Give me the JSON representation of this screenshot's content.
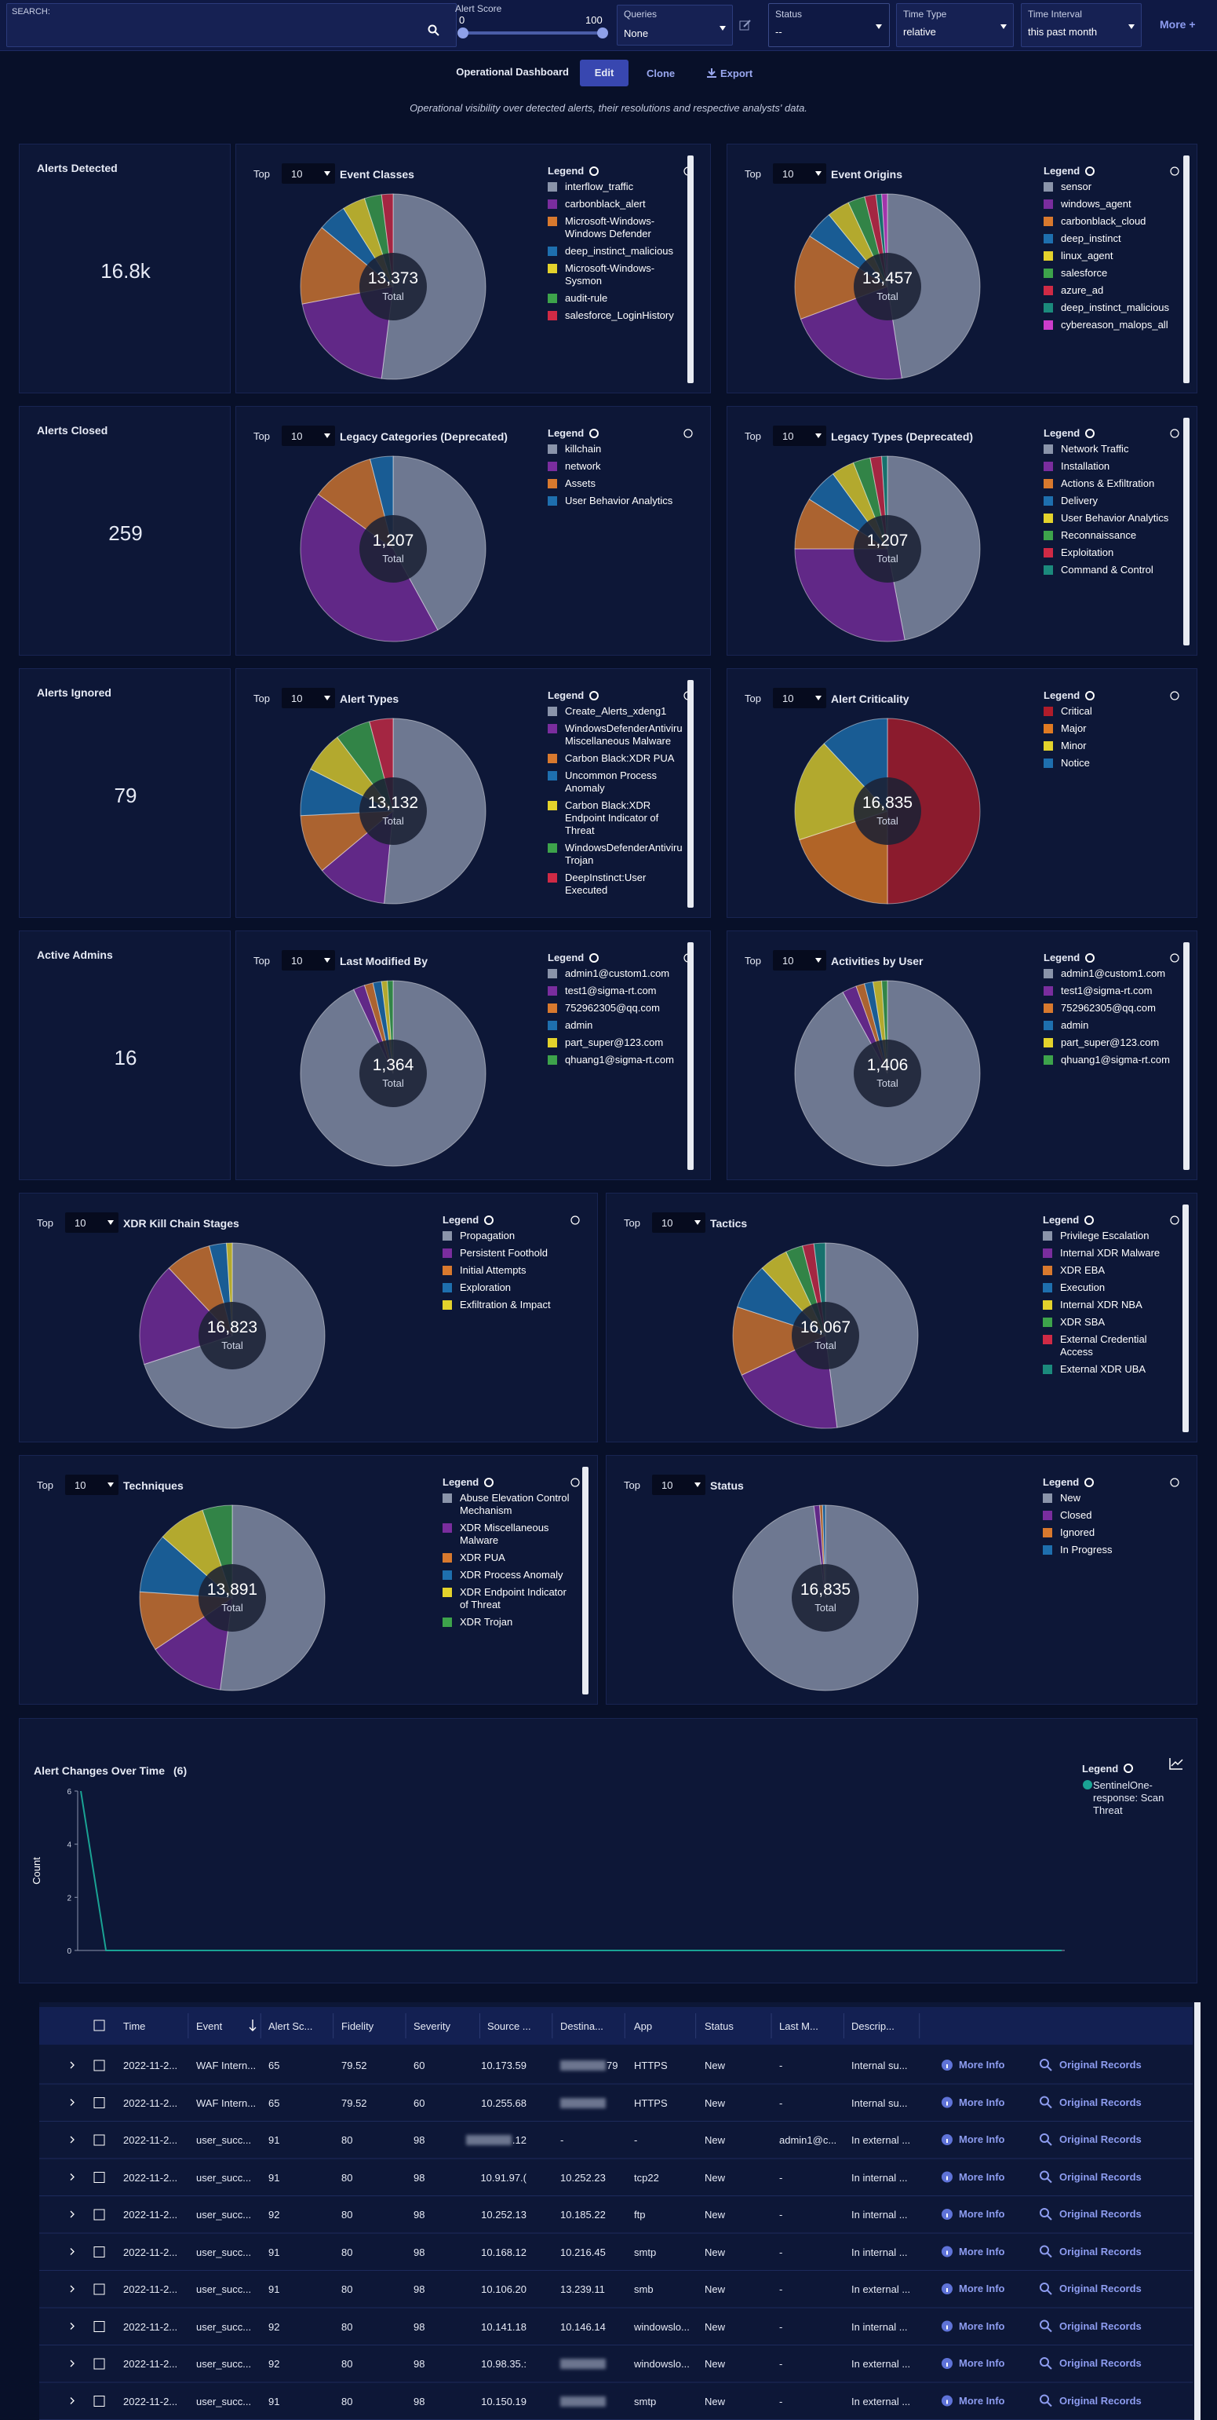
{
  "top_bar": {
    "search_label": "SEARCH:",
    "alert_score": {
      "label": "Alert Score",
      "min": 0,
      "max": 100
    },
    "queries": {
      "label": "Queries",
      "value": "None"
    },
    "status": {
      "label": "Status",
      "value": "--"
    },
    "time_type": {
      "label": "Time Type",
      "value": "relative"
    },
    "time_interval": {
      "label": "Time Interval",
      "value": "this past month"
    },
    "more": "More +"
  },
  "toolbar": {
    "dashboard": "Operational Dashboard",
    "edit": "Edit",
    "clone": "Clone",
    "export": "Export"
  },
  "subtitle": "Operational visibility over detected alerts, their resolutions and respective analysts' data.",
  "labels": {
    "top": "Top",
    "top_n": "10",
    "legend": "Legend",
    "total": "Total"
  },
  "stats": [
    {
      "label": "Alerts Detected",
      "value": "16.8k"
    },
    {
      "label": "Alerts Closed",
      "value": "259"
    },
    {
      "label": "Alerts Ignored",
      "value": "79"
    },
    {
      "label": "Active Admins",
      "value": "16"
    }
  ],
  "pie_panels": [
    {
      "title": "Event Classes",
      "total": "13,373",
      "slices": [
        {
          "name": "interflow_traffic",
          "color": "#8a94aa",
          "value": 52
        },
        {
          "name": "carbonblack_alert",
          "color": "#7a2d9e",
          "value": 20
        },
        {
          "name": "Microsoft-Windows-Windows Defender",
          "color": "#d8792e",
          "value": 14
        },
        {
          "name": "deep_instinct_malicious",
          "color": "#1e6fae",
          "value": 5
        },
        {
          "name": "Microsoft-Windows-Sysmon",
          "color": "#e3d22c",
          "value": 4
        },
        {
          "name": "audit-rule",
          "color": "#3da34b",
          "value": 3
        },
        {
          "name": "salesforce_LoginHistory",
          "color": "#cf2a45",
          "value": 2
        }
      ]
    },
    {
      "title": "Event Origins",
      "total": "13,457",
      "slices": [
        {
          "name": "sensor",
          "color": "#8a94aa",
          "value": 48
        },
        {
          "name": "windows_agent",
          "color": "#7a2d9e",
          "value": 22
        },
        {
          "name": "carbonblack_cloud",
          "color": "#d8792e",
          "value": 15
        },
        {
          "name": "deep_instinct",
          "color": "#1e6fae",
          "value": 5
        },
        {
          "name": "linux_agent",
          "color": "#e3d22c",
          "value": 4
        },
        {
          "name": "salesforce",
          "color": "#3da34b",
          "value": 3
        },
        {
          "name": "azure_ad",
          "color": "#cf2a45",
          "value": 2
        },
        {
          "name": "deep_instinct_malicious",
          "color": "#1b8a7c",
          "value": 1
        },
        {
          "name": "cybereason_malops_all",
          "color": "#cc3dcc",
          "value": 1
        }
      ]
    },
    {
      "title": "Legacy Categories (Deprecated)",
      "total": "1,207",
      "slices": [
        {
          "name": "killchain",
          "color": "#8a94aa",
          "value": 42
        },
        {
          "name": "network",
          "color": "#7a2d9e",
          "value": 43
        },
        {
          "name": "Assets",
          "color": "#d8792e",
          "value": 11
        },
        {
          "name": "User Behavior Analytics",
          "color": "#1e6fae",
          "value": 4
        }
      ]
    },
    {
      "title": "Legacy Types (Deprecated)",
      "total": "1,207",
      "slices": [
        {
          "name": "Network Traffic",
          "color": "#8a94aa",
          "value": 47
        },
        {
          "name": "Installation",
          "color": "#7a2d9e",
          "value": 28
        },
        {
          "name": "Actions & Exfiltration",
          "color": "#d8792e",
          "value": 9
        },
        {
          "name": "Delivery",
          "color": "#1e6fae",
          "value": 6
        },
        {
          "name": "User Behavior Analytics",
          "color": "#e3d22c",
          "value": 4
        },
        {
          "name": "Reconnaissance",
          "color": "#3da34b",
          "value": 3
        },
        {
          "name": "Exploitation",
          "color": "#cf2a45",
          "value": 2
        },
        {
          "name": "Command & Control",
          "color": "#1b8a7c",
          "value": 1
        }
      ]
    },
    {
      "title": "Alert Types",
      "total": "13,132",
      "slices": [
        {
          "name": "Create_Alerts_xdeng1",
          "color": "#8a94aa",
          "value": 50
        },
        {
          "name": "WindowsDefenderAntivirus Miscellaneous Malware",
          "color": "#7a2d9e",
          "value": 12
        },
        {
          "name": "Carbon Black:XDR PUA",
          "color": "#d8792e",
          "value": 10
        },
        {
          "name": "Uncommon Process Anomaly",
          "color": "#1e6fae",
          "value": 8
        },
        {
          "name": "Carbon Black:XDR Endpoint Indicator of Threat",
          "color": "#e3d22c",
          "value": 7
        },
        {
          "name": "WindowsDefenderAntivirus Trojan",
          "color": "#3da34b",
          "value": 6
        },
        {
          "name": "DeepInstinct:User Executed",
          "color": "#cf2a45",
          "value": 4
        }
      ]
    },
    {
      "title": "Alert Criticality",
      "total": "16,835",
      "slices": [
        {
          "name": "Critical",
          "color": "#b01c2a",
          "value": 50
        },
        {
          "name": "Major",
          "color": "#e07a22",
          "value": 20
        },
        {
          "name": "Minor",
          "color": "#e2d22c",
          "value": 18
        },
        {
          "name": "Notice",
          "color": "#1e6fae",
          "value": 12
        }
      ]
    },
    {
      "title": "Last Modified By",
      "total": "1,364",
      "slices": [
        {
          "name": "admin1@custom1.com",
          "color": "#8a94aa",
          "value": 93
        },
        {
          "name": "test1@sigma-rt.com",
          "color": "#7a2d9e",
          "value": 2
        },
        {
          "name": "752962305@qq.com",
          "color": "#d8792e",
          "value": 1.5
        },
        {
          "name": "admin",
          "color": "#1e6fae",
          "value": 1.5
        },
        {
          "name": "part_super@123.com",
          "color": "#e3d22c",
          "value": 1
        },
        {
          "name": "qhuang1@sigma-rt.com",
          "color": "#3da34b",
          "value": 1
        }
      ]
    },
    {
      "title": "Activities by User",
      "total": "1,406",
      "slices": [
        {
          "name": "admin1@custom1.com",
          "color": "#8a94aa",
          "value": 92
        },
        {
          "name": "test1@sigma-rt.com",
          "color": "#7a2d9e",
          "value": 2.5
        },
        {
          "name": "752962305@qq.com",
          "color": "#d8792e",
          "value": 1.5
        },
        {
          "name": "admin",
          "color": "#1e6fae",
          "value": 1.5
        },
        {
          "name": "part_super@123.com",
          "color": "#e3d22c",
          "value": 1.5
        },
        {
          "name": "qhuang1@sigma-rt.com",
          "color": "#3da34b",
          "value": 1
        }
      ]
    },
    {
      "title": "XDR Kill Chain Stages",
      "total": "16,823",
      "slices": [
        {
          "name": "Propagation",
          "color": "#8a94aa",
          "value": 70
        },
        {
          "name": "Persistent Foothold",
          "color": "#7a2d9e",
          "value": 18
        },
        {
          "name": "Initial Attempts",
          "color": "#d8792e",
          "value": 8
        },
        {
          "name": "Exploration",
          "color": "#1e6fae",
          "value": 3
        },
        {
          "name": "Exfiltration & Impact",
          "color": "#e3d22c",
          "value": 1
        }
      ]
    },
    {
      "title": "Tactics",
      "total": "16,067",
      "slices": [
        {
          "name": "Privilege Escalation",
          "color": "#8a94aa",
          "value": 48
        },
        {
          "name": "Internal XDR Malware",
          "color": "#7a2d9e",
          "value": 20
        },
        {
          "name": "XDR EBA",
          "color": "#d8792e",
          "value": 12
        },
        {
          "name": "Execution",
          "color": "#1e6fae",
          "value": 8
        },
        {
          "name": "Internal XDR NBA",
          "color": "#e3d22c",
          "value": 5
        },
        {
          "name": "XDR SBA",
          "color": "#3da34b",
          "value": 3
        },
        {
          "name": "External Credential Access",
          "color": "#cf2a45",
          "value": 2
        },
        {
          "name": "External XDR UBA",
          "color": "#1b8a7c",
          "value": 2
        }
      ]
    },
    {
      "title": "Techniques",
      "total": "13,891",
      "slices": [
        {
          "name": "Abuse Elevation Control Mechanism",
          "color": "#8a94aa",
          "value": 50
        },
        {
          "name": "XDR Miscellaneous Malware",
          "color": "#7a2d9e",
          "value": 13
        },
        {
          "name": "XDR PUA",
          "color": "#d8792e",
          "value": 10
        },
        {
          "name": "XDR Process Anomaly",
          "color": "#1e6fae",
          "value": 10
        },
        {
          "name": "XDR Endpoint Indicator of Threat",
          "color": "#e3d22c",
          "value": 8
        },
        {
          "name": "XDR Trojan",
          "color": "#3da34b",
          "value": 5
        }
      ]
    },
    {
      "title": "Status",
      "total": "16,835",
      "slices": [
        {
          "name": "New",
          "color": "#8a94aa",
          "value": 98
        },
        {
          "name": "Closed",
          "color": "#7a2d9e",
          "value": 1
        },
        {
          "name": "Ignored",
          "color": "#d8792e",
          "value": 0.5
        },
        {
          "name": "In Progress",
          "color": "#1e6fae",
          "value": 0.5
        }
      ]
    }
  ],
  "line_chart": {
    "title": "Alert Changes Over Time",
    "count": "(6)",
    "y_label": "Count",
    "ylim": [
      0,
      6
    ],
    "yticks": [
      0,
      2,
      4,
      6
    ],
    "x": [
      null,
      null,
      null,
      null,
      null,
      null,
      null,
      null,
      null,
      null,
      null,
      null,
      null,
      null,
      null,
      null,
      null,
      null,
      null,
      null,
      null,
      null,
      null,
      null,
      null,
      null,
      null,
      null,
      null,
      null,
      null,
      null,
      null,
      null,
      null,
      null,
      null,
      null,
      null,
      null
    ],
    "series": [
      {
        "name": "SentinelOne-response: Scan Threat",
        "color": "#1aa394",
        "values": [
          6,
          0,
          0,
          0,
          0,
          0,
          0,
          0,
          0,
          0,
          0,
          0,
          0,
          0,
          0,
          0,
          0,
          0,
          0,
          0,
          0,
          0,
          0,
          0,
          0,
          0,
          0,
          0,
          0,
          0,
          0,
          0,
          0,
          0,
          0,
          0,
          0,
          0,
          0,
          0
        ]
      }
    ]
  },
  "table": {
    "headers": [
      "Time",
      "Event",
      "Alert Sc...",
      "Fidelity",
      "Severity",
      "Source ...",
      "Destina...",
      "App",
      "Status",
      "Last M...",
      "Descrip..."
    ],
    "actions": [
      "More Info",
      "Original Records"
    ],
    "rows": [
      [
        "2022-11-2...",
        "WAF Intern...",
        "65",
        "79.52",
        "60",
        "10.173.59",
        "79",
        "HTTPS",
        "New",
        "-",
        "Internal su..."
      ],
      [
        "2022-11-2...",
        "WAF Intern...",
        "65",
        "79.52",
        "60",
        "10.255.68",
        null,
        "HTTPS",
        "New",
        "-",
        "Internal su..."
      ],
      [
        "2022-11-2...",
        "user_succ...",
        "91",
        "80",
        "98",
        ".12",
        "-",
        "-",
        "New",
        "admin1@c...",
        "In external ..."
      ],
      [
        "2022-11-2...",
        "user_succ...",
        "91",
        "80",
        "98",
        "10.91.97.(",
        "10.252.23",
        "tcp22",
        "New",
        "-",
        "In internal ..."
      ],
      [
        "2022-11-2...",
        "user_succ...",
        "92",
        "80",
        "98",
        "10.252.13",
        "10.185.22",
        "ftp",
        "New",
        "-",
        "In internal ..."
      ],
      [
        "2022-11-2...",
        "user_succ...",
        "91",
        "80",
        "98",
        "10.168.12",
        "10.216.45",
        "smtp",
        "New",
        "-",
        "In internal ..."
      ],
      [
        "2022-11-2...",
        "user_succ...",
        "91",
        "80",
        "98",
        "10.106.20",
        "13.239.11",
        "smb",
        "New",
        "-",
        "In external ..."
      ],
      [
        "2022-11-2...",
        "user_succ...",
        "92",
        "80",
        "98",
        "10.141.18",
        "10.146.14",
        "windowslo...",
        "New",
        "-",
        "In internal ..."
      ],
      [
        "2022-11-2...",
        "user_succ...",
        "92",
        "80",
        "98",
        "10.98.35.:",
        null,
        "windowslo...",
        "New",
        "-",
        "In external ..."
      ],
      [
        "2022-11-2...",
        "user_succ...",
        "91",
        "80",
        "98",
        "10.150.19",
        null,
        "smtp",
        "New",
        "-",
        "In external ..."
      ]
    ]
  }
}
